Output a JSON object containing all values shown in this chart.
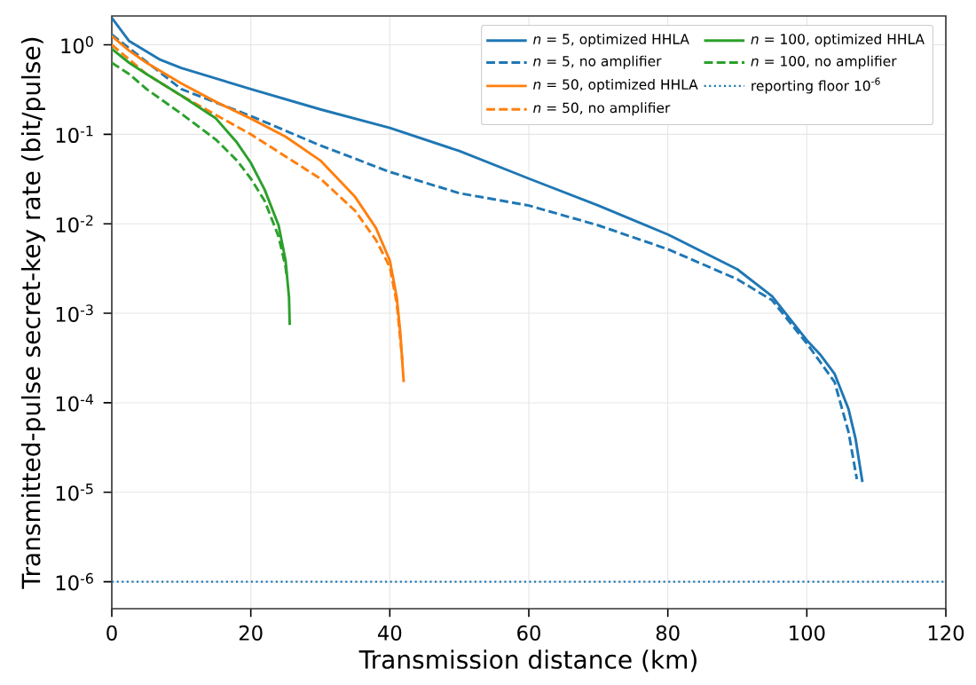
{
  "chart_data": {
    "type": "line",
    "xlabel": "Transmission distance (km)",
    "ylabel": "Transmitted-pulse secret-key rate (bit/pulse)",
    "log": "y",
    "grid": true,
    "legend": "top right",
    "xlim": [
      0,
      120
    ],
    "xticks": [
      0,
      20,
      40,
      60,
      80,
      100,
      120
    ],
    "ylim": [
      5e-07,
      2.1
    ],
    "yticks": [
      {
        "value": 1e-06,
        "label": "10$^{-6}$"
      },
      {
        "value": 1e-05,
        "label": "10$^{-5}$"
      },
      {
        "value": 0.0001,
        "label": "10$^{-4}$"
      },
      {
        "value": 0.001,
        "label": "10$^{-3}$"
      },
      {
        "value": 0.01,
        "label": "10$^{-2}$"
      },
      {
        "value": 0.1,
        "label": "10$^{-1}$"
      },
      {
        "value": 1,
        "label": "10$^{0}$"
      }
    ],
    "series": [
      {
        "name": "*n* = 5, optimized HHLA",
        "color": "#1f77b4",
        "line_style": "solid",
        "x": [
          0,
          2.5,
          7,
          10,
          20,
          30,
          40,
          50,
          60,
          70,
          80,
          90,
          95,
          100,
          102,
          104,
          106,
          107,
          108
        ],
        "values": [
          2.0,
          1.1,
          0.68,
          0.55,
          0.32,
          0.19,
          0.118,
          0.065,
          0.032,
          0.016,
          0.0076,
          0.0031,
          0.00155,
          0.0005,
          0.00034,
          0.00021,
          8.5e-05,
          4e-05,
          1.3e-05
        ]
      },
      {
        "name": "*n* = 5, no amplifier",
        "color": "#1f77b4",
        "line_style": "dashed",
        "x": [
          0,
          10,
          20,
          30,
          40,
          50,
          60,
          70,
          80,
          90,
          95,
          100,
          104,
          106,
          107.2
        ],
        "values": [
          1.3,
          0.32,
          0.16,
          0.075,
          0.038,
          0.022,
          0.016,
          0.0096,
          0.0052,
          0.0024,
          0.0014,
          0.00046,
          0.00017,
          4.7e-05,
          1.4e-05
        ]
      },
      {
        "name": "*n* = 50, optimized HHLA",
        "color": "#ff7f0e",
        "line_style": "solid",
        "x": [
          0,
          2.5,
          5,
          10,
          15,
          20,
          25,
          30,
          35,
          38,
          40,
          41,
          41.5,
          42
        ],
        "values": [
          1.25,
          0.86,
          0.63,
          0.37,
          0.23,
          0.15,
          0.094,
          0.051,
          0.02,
          0.009,
          0.0039,
          0.0015,
          0.00062,
          0.00017
        ]
      },
      {
        "name": "*n* = 50, no amplifier",
        "color": "#ff7f0e",
        "line_style": "dashed",
        "x": [
          0,
          5,
          10,
          20,
          30,
          35,
          38,
          40,
          41,
          41.8
        ],
        "values": [
          1.0,
          0.47,
          0.27,
          0.1,
          0.032,
          0.014,
          0.0066,
          0.0033,
          0.0013,
          0.0003
        ]
      },
      {
        "name": "*n* = 100, optimized HHLA",
        "color": "#2ca02c",
        "line_style": "solid",
        "x": [
          0,
          2.5,
          5,
          10,
          15,
          18,
          20,
          22,
          24,
          25,
          25.5,
          25.6
        ],
        "values": [
          0.9,
          0.63,
          0.47,
          0.27,
          0.15,
          0.081,
          0.048,
          0.024,
          0.0096,
          0.0039,
          0.0015,
          0.00074
        ]
      },
      {
        "name": "*n* = 100, no amplifier",
        "color": "#2ca02c",
        "line_style": "dashed",
        "x": [
          0,
          2.5,
          5,
          10,
          15,
          18,
          20,
          22,
          24,
          25,
          25.2
        ],
        "values": [
          0.63,
          0.47,
          0.32,
          0.17,
          0.087,
          0.051,
          0.032,
          0.018,
          0.0072,
          0.0033,
          0.0025
        ]
      }
    ],
    "ref_lines": [
      {
        "axis": "y",
        "value": 1e-06,
        "label": "reporting floor 10$^{-6}$",
        "color": "#1f77b4",
        "line_style": "dotted"
      }
    ]
  }
}
